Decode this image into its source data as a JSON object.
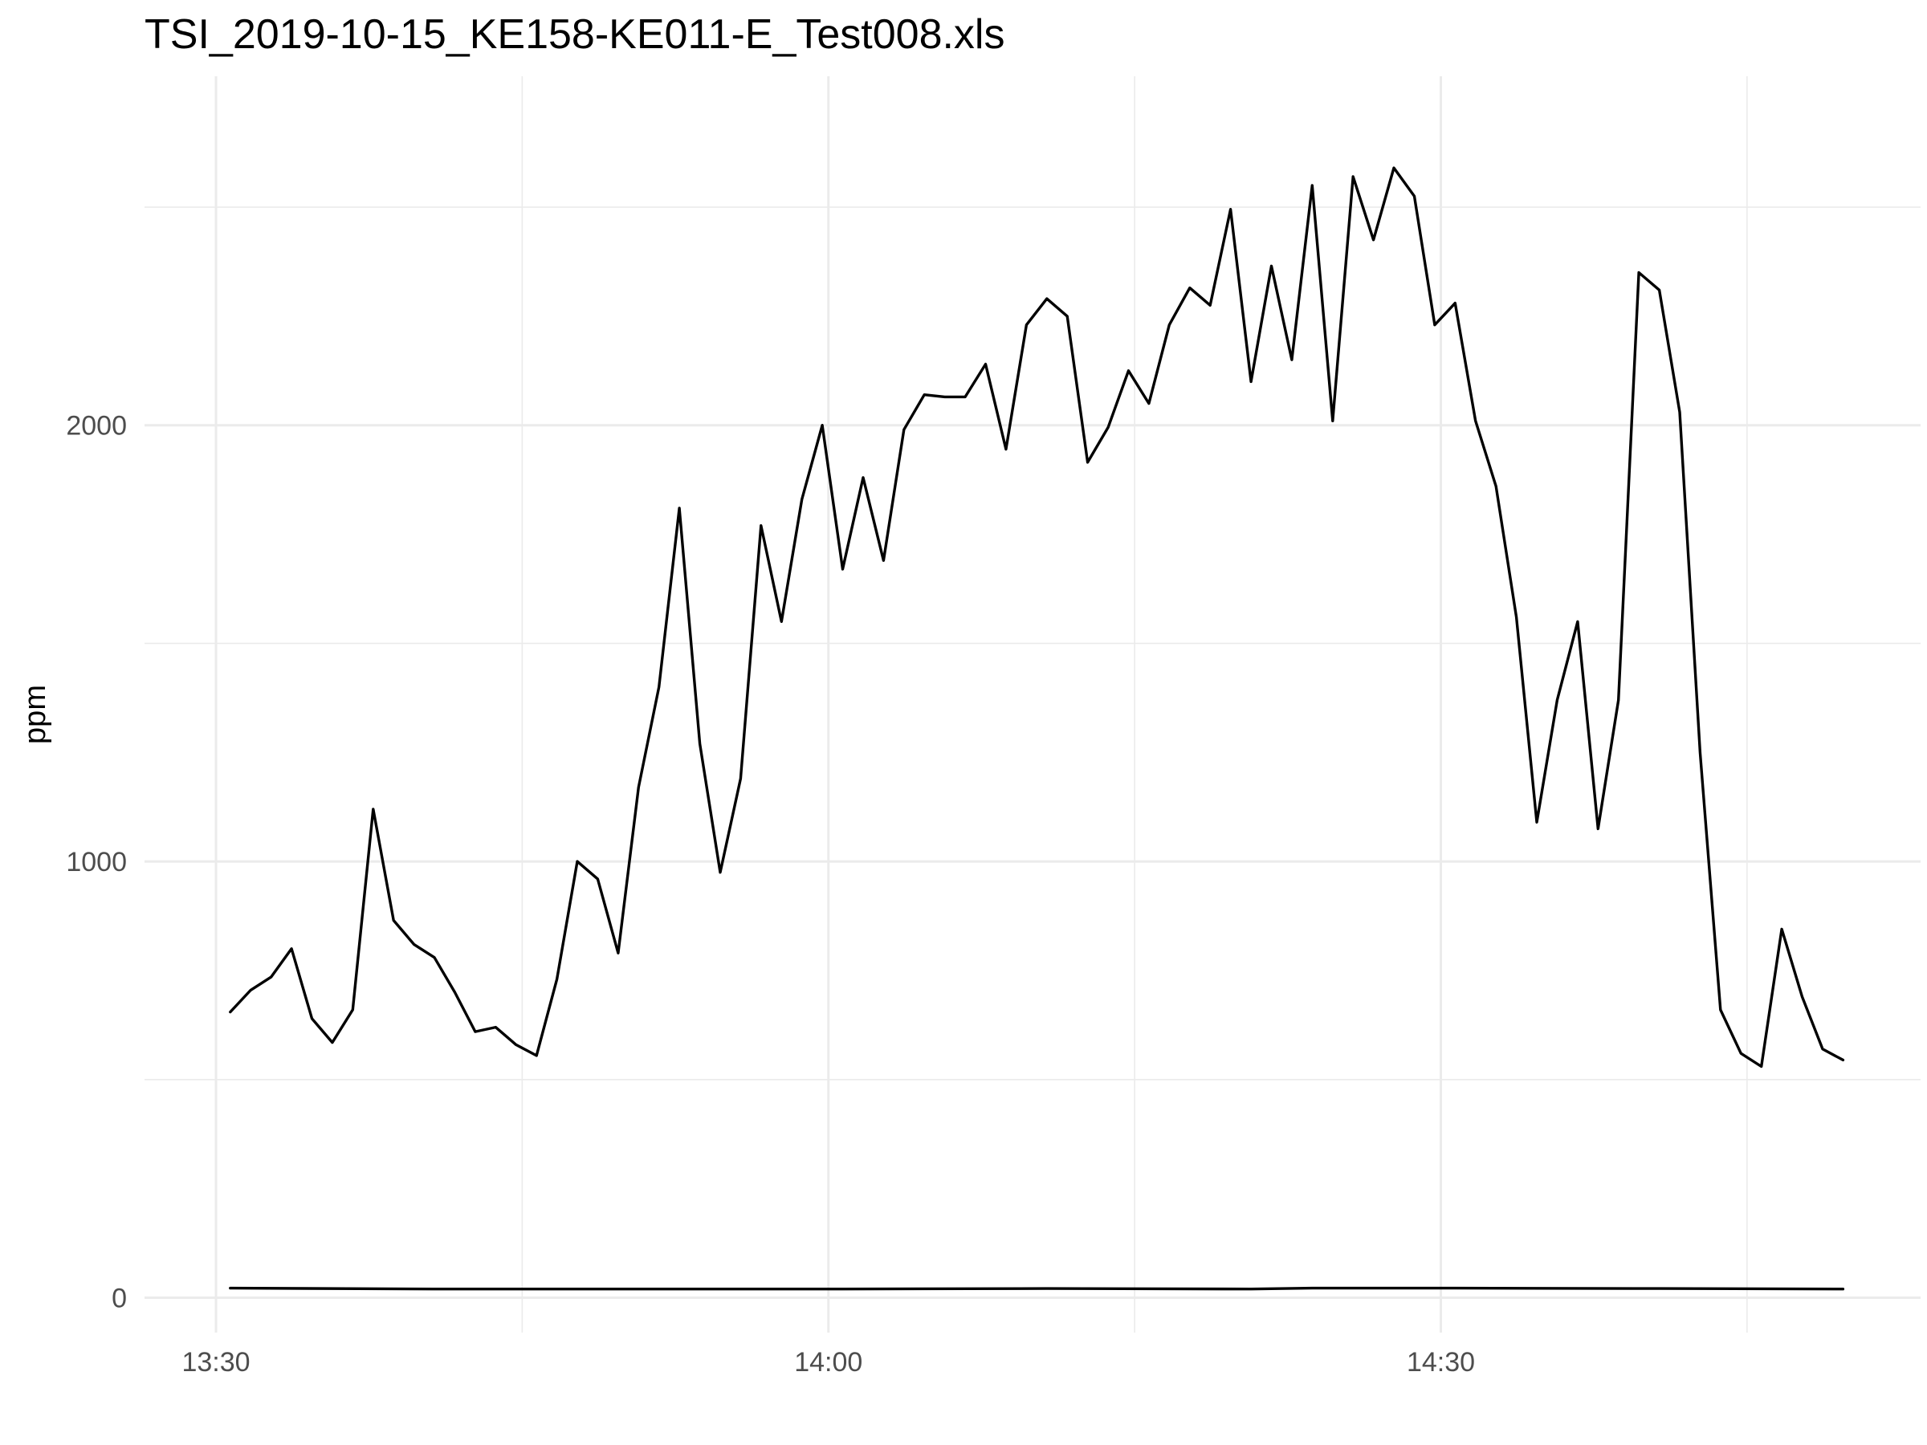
{
  "chart_data": {
    "type": "line",
    "title": "TSI_2019-10-15_KE158-KE011-E_Test008.xls",
    "xlabel": "",
    "ylabel": "ppm",
    "x_tick_labels": [
      "13:30",
      "14:00",
      "14:30"
    ],
    "x_tick_values_min": [
      0,
      30,
      60
    ],
    "y_tick_labels": [
      "0",
      "1000",
      "2000"
    ],
    "y_tick_values": [
      0,
      1000,
      2000
    ],
    "xlim_min": [
      -3.5,
      83.5
    ],
    "ylim": [
      -80,
      2800
    ],
    "grid": true,
    "x_axis_type": "time (minutes after 13:30)",
    "series": [
      {
        "values_x_min": [
          0.7,
          1.7,
          2.7,
          3.7,
          4.7,
          5.7,
          6.7,
          7.7,
          8.7,
          9.7,
          10.7,
          11.7,
          12.7,
          13.7,
          14.7,
          15.7,
          16.7,
          17.7,
          18.7,
          19.7,
          20.7,
          21.7,
          22.7,
          23.7,
          24.7,
          25.7,
          26.7,
          27.7,
          28.7,
          29.7,
          30.7,
          31.7,
          32.7,
          33.7,
          34.7,
          35.7,
          36.7,
          37.7,
          38.7,
          39.7,
          40.7,
          41.7,
          42.7,
          43.7,
          44.7,
          45.7,
          46.7,
          47.7,
          48.7,
          49.7,
          50.7,
          51.7,
          52.7,
          53.7,
          54.7,
          55.7,
          56.7,
          57.7,
          58.7,
          59.7,
          60.7,
          61.7,
          62.7,
          63.7,
          64.7,
          65.7,
          66.7,
          67.7,
          68.7,
          69.7,
          70.7,
          71.7,
          72.7,
          73.7,
          74.7,
          75.7,
          76.7,
          77.7,
          78.7,
          79.7
        ],
        "values": [
          655,
          705,
          735,
          800,
          640,
          585,
          660,
          1120,
          865,
          810,
          780,
          700,
          610,
          620,
          580,
          555,
          730,
          1000,
          960,
          790,
          1170,
          1400,
          1810,
          1270,
          975,
          1190,
          1770,
          1550,
          1830,
          2000,
          1670,
          1880,
          1690,
          1990,
          2070,
          2065,
          2065,
          2140,
          1945,
          2230,
          2290,
          2250,
          1915,
          1995,
          2125,
          2050,
          2230,
          2315,
          2275,
          2495,
          2100,
          2365,
          2150,
          2550,
          2010,
          2570,
          2425,
          2590,
          2525,
          2230,
          2280,
          2010,
          1860,
          1560,
          1090,
          1370,
          1550,
          1075,
          1370,
          2350,
          2310,
          2030,
          1250,
          660,
          560,
          530,
          845,
          690,
          570,
          545
        ]
      },
      {
        "values_x_min": [
          0.7,
          10.7,
          20.7,
          30.7,
          40.7,
          50.7,
          53.7,
          60.7,
          70.7,
          79.7
        ],
        "values": [
          22,
          20,
          20,
          20,
          21,
          20,
          22,
          22,
          21,
          20
        ]
      }
    ]
  }
}
